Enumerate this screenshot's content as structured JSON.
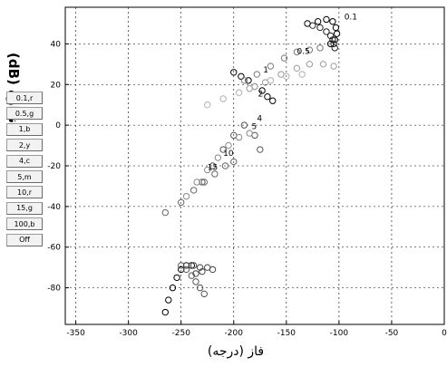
{
  "chart_data": {
    "type": "scatter",
    "xlabel": "فاز (درجه)",
    "ylabel": "اندازه (dB)",
    "xlim": [
      -360,
      0
    ],
    "ylim": [
      -98,
      58
    ],
    "xticks": [
      -350,
      -300,
      -250,
      -200,
      -150,
      -100,
      -50,
      0
    ],
    "yticks": [
      -80,
      -60,
      -40,
      -20,
      0,
      20,
      40
    ],
    "grid": true,
    "annotations": [
      {
        "text": "0.1",
        "x": -95,
        "y": 52
      },
      {
        "text": "0.5",
        "x": -140,
        "y": 35
      },
      {
        "text": "1",
        "x": -172,
        "y": 26
      },
      {
        "text": "2",
        "x": -177,
        "y": 14
      },
      {
        "text": "4",
        "x": -178,
        "y": 2
      },
      {
        "text": "5",
        "x": -183,
        "y": -2
      },
      {
        "text": "10",
        "x": -210,
        "y": -15
      },
      {
        "text": "15",
        "x": -225,
        "y": -22
      }
    ],
    "series": [
      {
        "color": "#000000",
        "x": [
          -130,
          -120,
          -112,
          -106,
          -103,
          -102,
          -104,
          -108
        ],
        "y": [
          50,
          51,
          52,
          51,
          48,
          45,
          42,
          40
        ]
      },
      {
        "color": "#222222",
        "x": [
          -125,
          -118,
          -112,
          -108,
          -106,
          -105,
          -104
        ],
        "y": [
          49,
          48,
          46,
          44,
          42,
          40,
          38
        ]
      },
      {
        "color": "#000000",
        "x": [
          -200,
          -193,
          -186,
          -180,
          -173,
          -168,
          -163
        ],
        "y": [
          26,
          24,
          22,
          19,
          17,
          14,
          12
        ]
      },
      {
        "color": "#777777",
        "x": [
          -190,
          -178,
          -165,
          -152,
          -140,
          -128,
          -118
        ],
        "y": [
          22,
          25,
          29,
          33,
          36,
          37,
          38
        ]
      },
      {
        "color": "#999999",
        "x": [
          -185,
          -170,
          -155,
          -140,
          -128,
          -115,
          -105
        ],
        "y": [
          18,
          21,
          25,
          28,
          30,
          30,
          29
        ]
      },
      {
        "color": "#b0b0b0",
        "x": [
          -225,
          -210,
          -195,
          -180,
          -165,
          -150,
          -135
        ],
        "y": [
          10,
          13,
          16,
          19,
          22,
          24,
          25
        ]
      },
      {
        "color": "#555555",
        "x": [
          -230,
          -220,
          -210,
          -200,
          -190,
          -180,
          -175
        ],
        "y": [
          -28,
          -20,
          -12,
          -5,
          0,
          -5,
          -12
        ]
      },
      {
        "color": "#888888",
        "x": [
          -245,
          -235,
          -225,
          -215,
          -205,
          -195,
          -185
        ],
        "y": [
          -35,
          -28,
          -22,
          -16,
          -10,
          -6,
          -4
        ]
      },
      {
        "color": "#666666",
        "x": [
          -265,
          -250,
          -238,
          -228,
          -218,
          -208,
          -200
        ],
        "y": [
          -43,
          -38,
          -32,
          -28,
          -24,
          -20,
          -18
        ]
      },
      {
        "color": "#000000",
        "x": [
          -265,
          -262,
          -258,
          -254,
          -250,
          -245,
          -240
        ],
        "y": [
          -92,
          -86,
          -80,
          -75,
          -71,
          -69,
          -69
        ]
      },
      {
        "color": "#555555",
        "x": [
          -250,
          -245,
          -240,
          -236,
          -232,
          -228
        ],
        "y": [
          -69,
          -71,
          -74,
          -77,
          -80,
          -83
        ]
      },
      {
        "color": "#444444",
        "x": [
          -245,
          -238,
          -232,
          -225,
          -220,
          -230,
          -236
        ],
        "y": [
          -69,
          -69,
          -70,
          -70,
          -71,
          -72,
          -73
        ]
      }
    ]
  },
  "buttons": [
    "0.1,r",
    "0.5,g",
    "1,b",
    "2,y",
    "4,c",
    "5,m",
    "10,r",
    "15,g",
    "100,b",
    "Off"
  ]
}
